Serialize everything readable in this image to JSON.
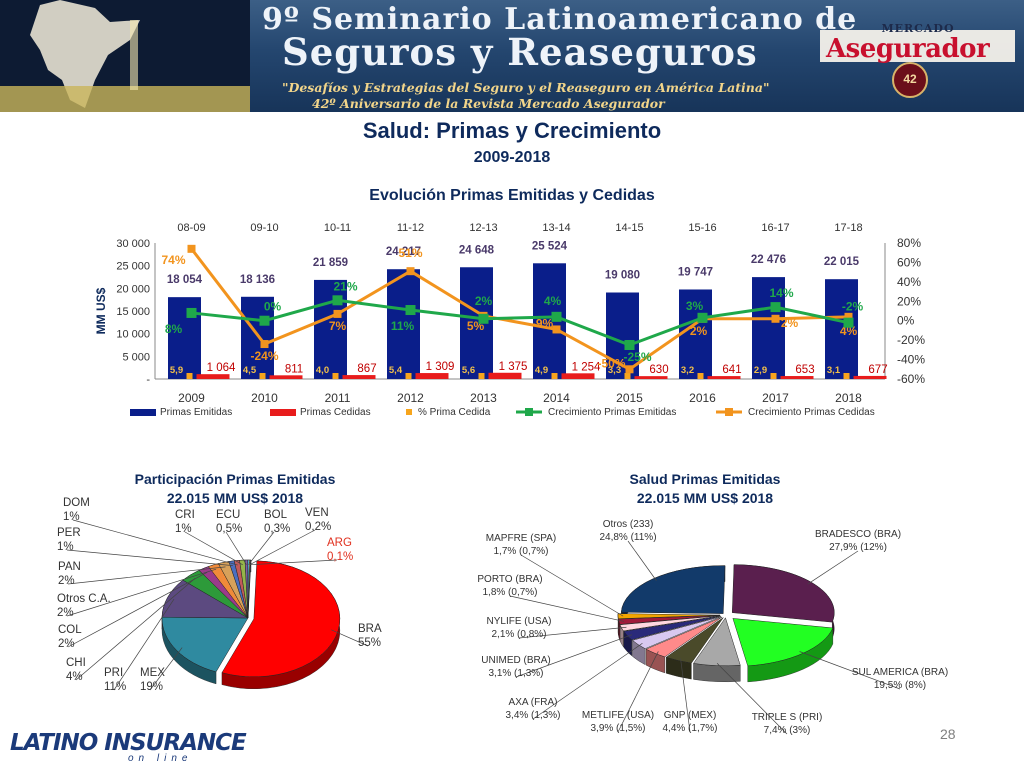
{
  "banner": {
    "line1": "9º Seminario Latinoamericano de",
    "line2": "Seguros y Reaseguros",
    "line3": "\"Desafíos y Estrategias del Seguro y el Reaseguro en América Latina\"",
    "line4": "42º Aniversario de la Revista Mercado Asegurador",
    "brand_top": "MERCADO",
    "brand_main": "Asegurador",
    "seal": "42"
  },
  "page": {
    "title": "Salud: Primas y Crecimiento",
    "subtitle": "2009-2018",
    "page_number": "28"
  },
  "logo": {
    "word": "LATINO INSURANCE",
    "sub": "on line"
  },
  "colors": {
    "primas_emitidas": "#0a1e8a",
    "primas_cedidas": "#e81c1c",
    "pct_cedida": "#f7a51c",
    "crec_emitidas": "#1fa84a",
    "crec_cedidas": "#f2941e",
    "title": "#0e2a5c"
  },
  "chart_data": [
    {
      "type": "bar",
      "title": "Evolución Primas Emitidas y Cedidas",
      "categories": [
        "2009",
        "2010",
        "2011",
        "2012",
        "2013",
        "2014",
        "2015",
        "2016",
        "2017",
        "2018"
      ],
      "period_labels": [
        "08-09",
        "09-10",
        "10-11",
        "11-12",
        "12-13",
        "13-14",
        "14-15",
        "15-16",
        "16-17",
        "17-18"
      ],
      "ylabel": "MM US$",
      "ylim": [
        0,
        30000
      ],
      "y_ticks": [
        0,
        5000,
        10000,
        15000,
        20000,
        25000,
        30000
      ],
      "y_tick_labels": [
        "-",
        "5 000",
        "10 000",
        "15 000",
        "20 000",
        "25 000",
        "30 000"
      ],
      "y2lim": [
        -60,
        80
      ],
      "y2_ticks": [
        -60,
        -40,
        -20,
        0,
        20,
        40,
        60,
        80
      ],
      "y2_tick_labels": [
        "-60%",
        "-40%",
        "-20%",
        "0%",
        "20%",
        "40%",
        "60%",
        "80%"
      ],
      "grid": false,
      "legend_position": "bottom",
      "series": [
        {
          "name": "Primas Emitidas",
          "kind": "bar",
          "axis": "left",
          "values": [
            18054,
            18136,
            21859,
            24217,
            24648,
            25524,
            19080,
            19747,
            22476,
            22015
          ],
          "labels": [
            "18 054",
            "18 136",
            "21 859",
            "24 217",
            "24 648",
            "25 524",
            "19 080",
            "19 747",
            "22 476",
            "22 015"
          ]
        },
        {
          "name": "Primas Cedidas",
          "kind": "bar",
          "axis": "left",
          "values": [
            1064,
            811,
            867,
            1309,
            1375,
            1254,
            630,
            641,
            653,
            677
          ],
          "labels": [
            "1 064",
            "811",
            "867",
            "1 309",
            "1 375",
            "1 254",
            "630",
            "641",
            "653",
            "677"
          ]
        },
        {
          "name": "% Prima Cedida",
          "kind": "marker",
          "axis": "left",
          "values": [
            5.9,
            4.5,
            4.0,
            5.4,
            5.6,
            4.9,
            3.3,
            3.2,
            2.9,
            3.1
          ],
          "labels": [
            "5,9",
            "4,5",
            "4,0",
            "5,4",
            "5,6",
            "4,9",
            "3,3",
            "3,2",
            "2,9",
            "3,1"
          ]
        },
        {
          "name": "Crecimiento Primas Emitidas",
          "kind": "line",
          "axis": "right",
          "values": [
            8,
            0,
            21,
            11,
            2,
            4,
            -25,
            3,
            14,
            -2
          ],
          "labels": [
            "8%",
            "0%",
            "21%",
            "11%",
            "2%",
            "4%",
            "-25%",
            "3%",
            "14%",
            "-2%"
          ]
        },
        {
          "name": "Crecimiento Primas Cedidas",
          "kind": "line",
          "axis": "right",
          "values": [
            74,
            -24,
            7,
            51,
            5,
            -9,
            -50,
            2,
            2,
            4
          ],
          "labels": [
            "74%",
            "-24%",
            "7%",
            "51%",
            "5%",
            "-9%",
            "-50%",
            "2%",
            "2%",
            "4%"
          ]
        }
      ]
    },
    {
      "type": "pie",
      "title": "Participación Primas Emitidas",
      "subtitle": "22.015 MM US$  2018",
      "slices": [
        {
          "name": "BRA",
          "value": 55,
          "label": "55%",
          "color": "#ff0000"
        },
        {
          "name": "MEX",
          "value": 19,
          "label": "19%",
          "color": "#2f8aa0"
        },
        {
          "name": "PRI",
          "value": 11,
          "label": "11%",
          "color": "#5c4a80"
        },
        {
          "name": "CHI",
          "value": 4,
          "label": "4%",
          "color": "#2d9a3a"
        },
        {
          "name": "COL",
          "value": 2,
          "label": "2%",
          "color": "#9a3b8a"
        },
        {
          "name": "Otros C.A.",
          "value": 2,
          "label": "2%",
          "color": "#f08a3a"
        },
        {
          "name": "PAN",
          "value": 2,
          "label": "2%",
          "color": "#d7a15a"
        },
        {
          "name": "PER",
          "value": 1,
          "label": "1%",
          "color": "#4c6fc0"
        },
        {
          "name": "DOM",
          "value": 1,
          "label": "1%",
          "color": "#c25a5a"
        },
        {
          "name": "CRI",
          "value": 1,
          "label": "1%",
          "color": "#95b54a"
        },
        {
          "name": "ECU",
          "value": 0.5,
          "label": "0,5%",
          "color": "#7c5fa8"
        },
        {
          "name": "BOL",
          "value": 0.3,
          "label": "0,3%",
          "color": "#4bb1c8"
        },
        {
          "name": "VEN",
          "value": 0.2,
          "label": "0,2%",
          "color": "#f2b27a"
        },
        {
          "name": "ARG",
          "value": 0.1,
          "label": "0,1%",
          "color": "#8fa9d8"
        }
      ]
    },
    {
      "type": "pie",
      "title": "Salud Primas Emitidas",
      "subtitle": "22.015 MM US$ 2018",
      "slices": [
        {
          "name": "BRADESCO (BRA)",
          "value": 27.9,
          "label": "27,9% (12%)",
          "color": "#5a1f4e"
        },
        {
          "name": "SUL AMERICA (BRA)",
          "value": 19.5,
          "label": "19,5% (8%)",
          "color": "#22ff22"
        },
        {
          "name": "TRIPLE S (PRI)",
          "value": 7.4,
          "label": "7,4% (3%)",
          "color": "#a8a8a8"
        },
        {
          "name": "GNP (MEX)",
          "value": 4.4,
          "label": "4,4% (1,7%)",
          "color": "#4a4a2a"
        },
        {
          "name": "METLIFE (USA)",
          "value": 3.9,
          "label": "3,9% (1,5%)",
          "color": "#ff8a8a"
        },
        {
          "name": "AXA (FRA)",
          "value": 3.4,
          "label": "3,4% (1,3%)",
          "color": "#d8c8f0"
        },
        {
          "name": "UNIMED (BRA)",
          "value": 3.1,
          "label": "3,1% (1,3%)",
          "color": "#2a2a7a"
        },
        {
          "name": "NYLIFE (USA)",
          "value": 2.1,
          "label": "2,1% (0,8%)",
          "color": "#ffd7e0"
        },
        {
          "name": "PORTO (BRA)",
          "value": 1.8,
          "label": "1,8% (0,7%)",
          "color": "#a01a3a"
        },
        {
          "name": "MAPFRE (SPA)",
          "value": 1.7,
          "label": "1,7% (0,7%)",
          "color": "#f2a500"
        },
        {
          "name": "Otros (233)",
          "value": 24.8,
          "label": "24,8% (11%)",
          "color": "#123a6a"
        }
      ]
    }
  ]
}
